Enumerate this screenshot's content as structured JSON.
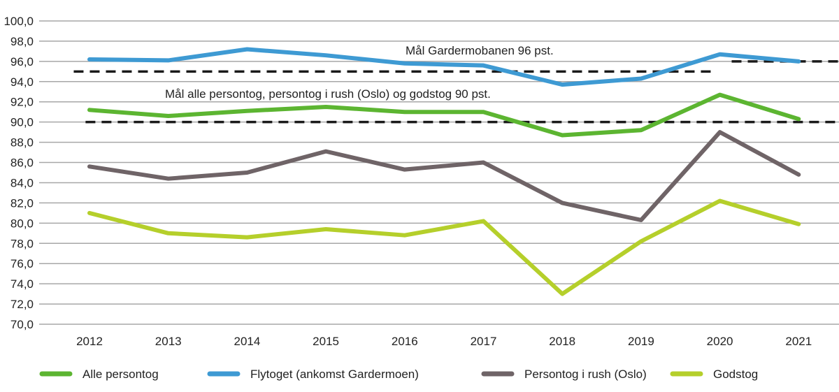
{
  "chart_data": {
    "type": "line",
    "title": "",
    "xlabel": "",
    "ylabel": "",
    "ylim": [
      70,
      100
    ],
    "y_ticks": [
      "70,0",
      "72,0",
      "74,0",
      "76,0",
      "78,0",
      "80,0",
      "82,0",
      "84,0",
      "86,0",
      "88,0",
      "90,0",
      "92,0",
      "94,0",
      "96,0",
      "98,0",
      "100,0"
    ],
    "categories": [
      "2012",
      "2013",
      "2014",
      "2015",
      "2016",
      "2017",
      "2018",
      "2019",
      "2020",
      "2021"
    ],
    "grid": true,
    "legend_position": "bottom",
    "series": [
      {
        "name": "Alle persontog",
        "color": "#5cb531",
        "values": [
          91.2,
          90.6,
          91.1,
          91.5,
          91.0,
          91.0,
          88.7,
          89.2,
          92.7,
          90.3
        ]
      },
      {
        "name": "Flytoget (ankomst Gardermoen)",
        "color": "#3e9ad3",
        "values": [
          96.2,
          96.1,
          97.2,
          96.6,
          95.8,
          95.6,
          93.7,
          94.3,
          96.7,
          96.0
        ]
      },
      {
        "name": "Persontog i rush (Oslo)",
        "color": "#6f6467",
        "values": [
          85.6,
          84.4,
          85.0,
          87.1,
          85.3,
          86.0,
          82.0,
          80.3,
          89.0,
          84.8
        ]
      },
      {
        "name": "Godstog",
        "color": "#b5cf2b",
        "values": [
          81.0,
          79.0,
          78.6,
          79.4,
          78.8,
          80.2,
          73.0,
          78.2,
          82.2,
          79.9
        ]
      }
    ],
    "target_lines": [
      {
        "value": 95,
        "from_year": 2011.8,
        "to_year": 2019.95
      },
      {
        "value": 96,
        "from_year": 2020.15,
        "to_year": 2021.5
      },
      {
        "value": 90,
        "from_year": 2011.95,
        "to_year": 2021.5
      }
    ],
    "annotations": [
      {
        "text": "Mål Gardermobanen 96 pst."
      },
      {
        "text": "Mål alle persontog, persontog i rush (Oslo) og godstog 90 pst."
      }
    ]
  }
}
